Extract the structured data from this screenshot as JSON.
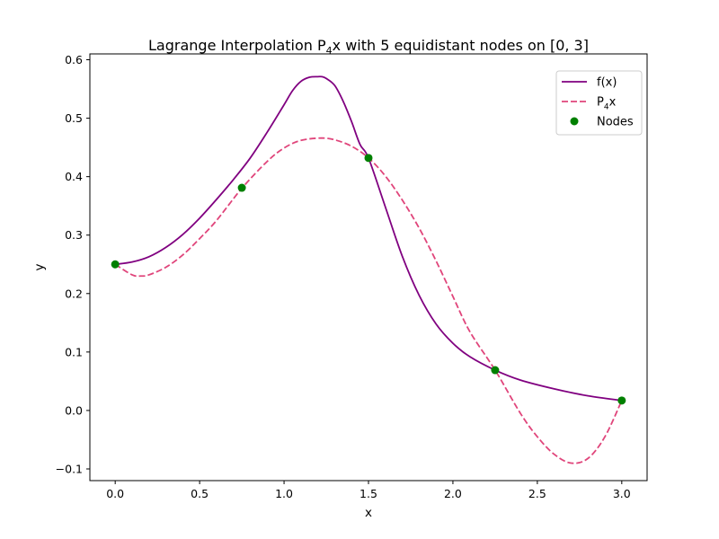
{
  "chart_data": {
    "type": "line",
    "title": "Lagrange Interpolation P4x with 5 equidistant nodes on [0, 3]",
    "title_parts": {
      "prefix": "Lagrange Interpolation P",
      "subscript": "4",
      "suffix": "x with 5 equidistant nodes on [0, 3]"
    },
    "xlabel": "x",
    "ylabel": "y",
    "xlim": [
      -0.15,
      3.15
    ],
    "ylim": [
      -0.12,
      0.61
    ],
    "xticks": [
      0.0,
      0.5,
      1.0,
      1.5,
      2.0,
      2.5,
      3.0
    ],
    "xtick_labels": [
      "0.0",
      "0.5",
      "1.0",
      "1.5",
      "2.0",
      "2.5",
      "3.0"
    ],
    "yticks": [
      -0.1,
      0.0,
      0.1,
      0.2,
      0.3,
      0.4,
      0.5,
      0.6
    ],
    "ytick_labels": [
      "−0.1",
      "0.0",
      "0.1",
      "0.2",
      "0.3",
      "0.4",
      "0.5",
      "0.6"
    ],
    "grid": false,
    "legend_position": "top-right",
    "series": [
      {
        "name": "f(x)",
        "legend_parts": {
          "prefix": "f(x)",
          "subscript": "",
          "suffix": ""
        },
        "style": "solid",
        "color": "#800080",
        "x": [
          0.0,
          0.1,
          0.2,
          0.3,
          0.4,
          0.5,
          0.6,
          0.7,
          0.8,
          0.9,
          1.0,
          1.05,
          1.1,
          1.15,
          1.2,
          1.225,
          1.25,
          1.3,
          1.35,
          1.4,
          1.45,
          1.5,
          1.6,
          1.7,
          1.8,
          1.9,
          2.0,
          2.1,
          2.25,
          2.4,
          2.6,
          2.8,
          3.0
        ],
        "y": [
          0.25,
          0.254,
          0.263,
          0.279,
          0.301,
          0.329,
          0.361,
          0.395,
          0.432,
          0.476,
          0.523,
          0.547,
          0.563,
          0.57,
          0.571,
          0.571,
          0.568,
          0.556,
          0.529,
          0.494,
          0.455,
          0.432,
          0.348,
          0.264,
          0.197,
          0.148,
          0.115,
          0.092,
          0.069,
          0.052,
          0.037,
          0.025,
          0.017
        ]
      },
      {
        "name": "P4x",
        "legend_parts": {
          "prefix": "P",
          "subscript": "4",
          "suffix": "x"
        },
        "style": "dashed",
        "color": "#e0457b",
        "x": [
          0.0,
          0.1,
          0.15,
          0.2,
          0.3,
          0.4,
          0.5,
          0.6,
          0.75,
          0.9,
          1.0,
          1.1,
          1.22,
          1.3,
          1.4,
          1.5,
          1.6,
          1.7,
          1.8,
          1.9,
          2.0,
          2.1,
          2.25,
          2.4,
          2.5,
          2.6,
          2.7,
          2.8,
          2.9,
          3.0
        ],
        "y": [
          0.25,
          0.232,
          0.23,
          0.232,
          0.245,
          0.266,
          0.294,
          0.325,
          0.38,
          0.426,
          0.449,
          0.462,
          0.466,
          0.463,
          0.452,
          0.432,
          0.401,
          0.36,
          0.312,
          0.256,
          0.195,
          0.135,
          0.069,
          -0.005,
          -0.045,
          -0.075,
          -0.09,
          -0.082,
          -0.045,
          0.017
        ]
      },
      {
        "name": "Nodes",
        "legend_parts": {
          "prefix": "Nodes",
          "subscript": "",
          "suffix": ""
        },
        "style": "scatter",
        "color": "#008000",
        "x": [
          0.0,
          0.75,
          1.5,
          2.25,
          3.0
        ],
        "y": [
          0.25,
          0.381,
          0.432,
          0.069,
          0.017
        ]
      }
    ]
  }
}
